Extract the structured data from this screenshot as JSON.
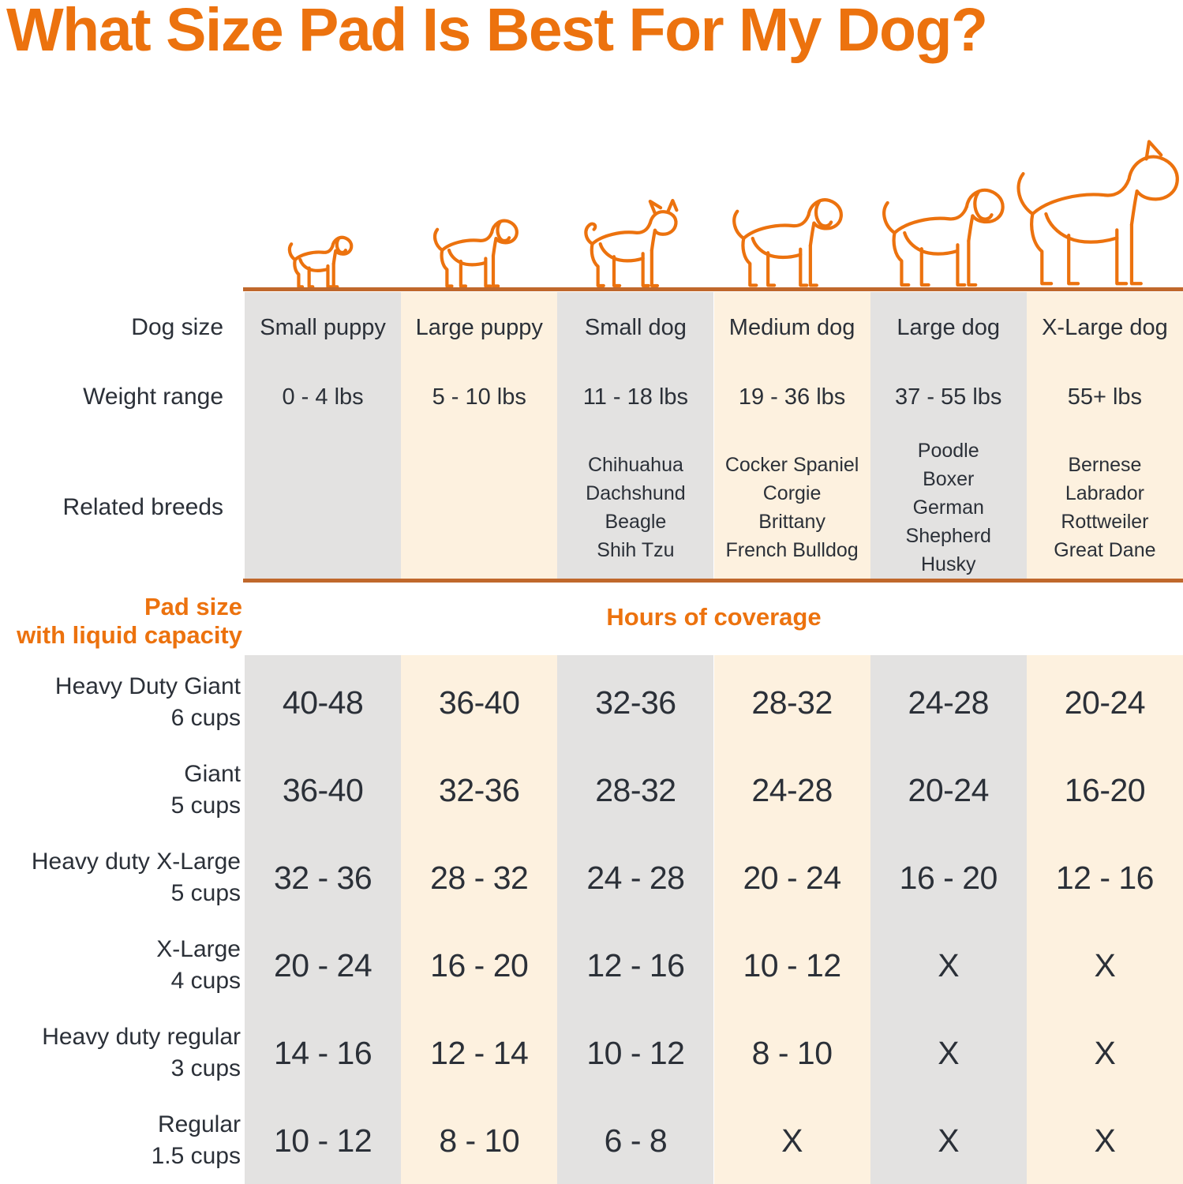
{
  "colors": {
    "accent_orange": "#ec720e",
    "line_orange": "#c0682c",
    "column_gray": "#e3e2e1",
    "column_cream": "#fdf1df",
    "text_dark": "#2b3038"
  },
  "chart_data": {
    "type": "table",
    "title": "What Size Pad Is Best For My Dog?",
    "row_captions": {
      "dog_size": "Dog size",
      "weight": "Weight range",
      "breeds": "Related breeds"
    },
    "section": {
      "pad_size_line1": "Pad size",
      "pad_size_line2": "with liquid capacity",
      "hours": "Hours of coverage"
    },
    "columns": [
      {
        "name": "Small puppy",
        "weight": "0 - 4 lbs",
        "breeds": [],
        "shade": "gray",
        "icon": "small-puppy-icon",
        "dog_variant": "floppy",
        "dog_height": 74
      },
      {
        "name": "Large puppy",
        "weight": "5 - 10 lbs",
        "breeds": [],
        "shade": "cream",
        "icon": "large-puppy-icon",
        "dog_variant": "floppy",
        "dog_height": 98
      },
      {
        "name": "Small dog",
        "weight": "11 - 18 lbs",
        "breeds": [
          "Chihuahua",
          "Dachshund",
          "Beagle",
          "Shih Tzu"
        ],
        "shade": "gray",
        "icon": "small-dog-icon",
        "dog_variant": "chihuahua",
        "dog_height": 114
      },
      {
        "name": "Medium dog",
        "weight": "19 - 36 lbs",
        "breeds": [
          "Cocker Spaniel",
          "Corgie",
          "Brittany",
          "French Bulldog"
        ],
        "shade": "cream",
        "icon": "medium-dog-icon",
        "dog_variant": "floppy",
        "dog_height": 128
      },
      {
        "name": "Large dog",
        "weight": "37 - 55 lbs",
        "breeds": [
          "Poodle",
          "Boxer",
          "German Shepherd",
          "Husky"
        ],
        "shade": "gray",
        "icon": "large-dog-icon",
        "dog_variant": "floppy",
        "dog_height": 142
      },
      {
        "name": "X-Large dog",
        "weight": "55+ lbs",
        "breeds": [
          "Bernese",
          "Labrador",
          "Rottweiler",
          "Great Dane"
        ],
        "shade": "cream",
        "icon": "x-large-dog-icon",
        "dog_variant": "dane",
        "dog_height": 190
      }
    ],
    "pad_rows": [
      {
        "name": "Heavy Duty Giant",
        "capacity": "6 cups",
        "hours": [
          "40-48",
          "36-40",
          "32-36",
          "28-32",
          "24-28",
          "20-24"
        ]
      },
      {
        "name": "Giant",
        "capacity": "5 cups",
        "hours": [
          "36-40",
          "32-36",
          "28-32",
          "24-28",
          "20-24",
          "16-20"
        ]
      },
      {
        "name": "Heavy duty X-Large",
        "capacity": "5 cups",
        "hours": [
          "32 - 36",
          "28 - 32",
          "24 - 28",
          "20 - 24",
          "16 - 20",
          "12 - 16"
        ]
      },
      {
        "name": "X-Large",
        "capacity": "4 cups",
        "hours": [
          "20 - 24",
          "16 - 20",
          "12 - 16",
          "10 - 12",
          "X",
          "X"
        ]
      },
      {
        "name": "Heavy duty regular",
        "capacity": "3 cups",
        "hours": [
          "14 - 16",
          "12 - 14",
          "10 - 12",
          "8 - 10",
          "X",
          "X"
        ]
      },
      {
        "name": "Regular",
        "capacity": "1.5 cups",
        "hours": [
          "10 - 12",
          "8 - 10",
          "6 - 8",
          "X",
          "X",
          "X"
        ]
      }
    ]
  }
}
